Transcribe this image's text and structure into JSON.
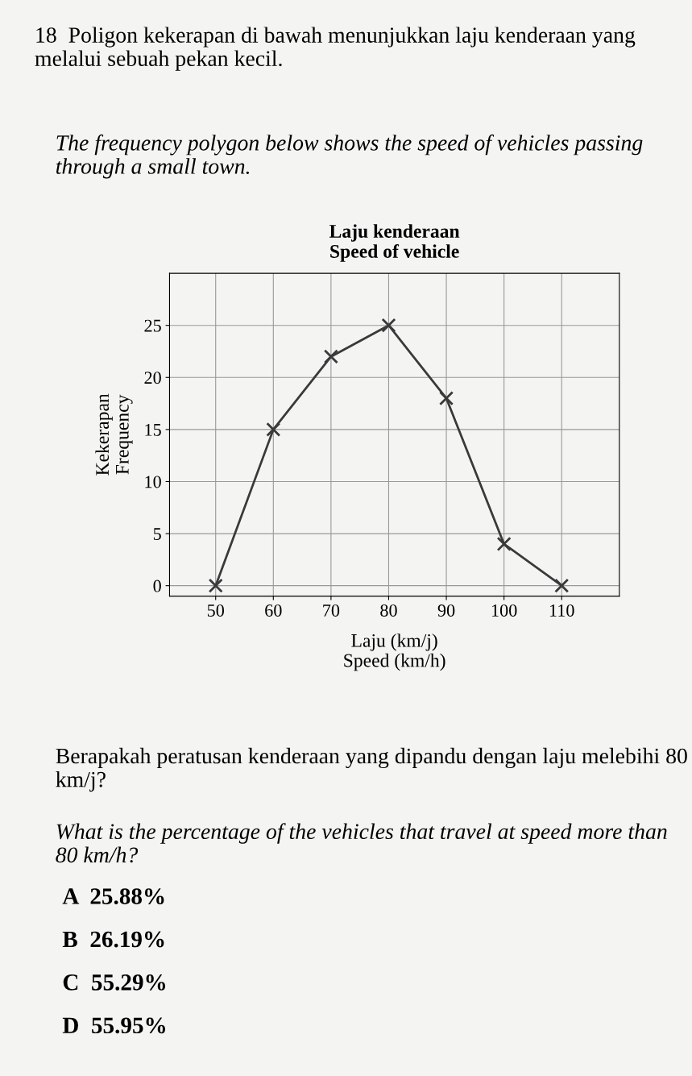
{
  "chart_data": {
    "type": "line",
    "title": "Laju kenderaan",
    "subtitle": "Speed of vehicle",
    "xlabel": "Laju (km/j)\nSpeed (km/h)",
    "ylabel": "Kekerapan\nFrequency",
    "x": [
      50,
      60,
      70,
      80,
      90,
      100,
      110
    ],
    "series": [
      {
        "color": "#3a3a3a",
        "values": [
          0,
          15,
          22,
          25,
          18,
          4,
          0
        ]
      }
    ],
    "xlim": [
      42,
      120
    ],
    "ylim": [
      -1,
      30
    ],
    "xticks": [
      50,
      60,
      70,
      80,
      90,
      100,
      110
    ],
    "yticks": [
      0,
      5,
      10,
      15,
      20,
      25
    ],
    "grid": true,
    "marker": "cross",
    "line_style": "solid",
    "annotations": [
      "18  Poligon kekerapan di bawah menunjukkan laju kenderaan yang melalui sebuah pekan kecil.",
      "The frequency polygon below shows the speed of vehicles passing through a small town.",
      "Berapakah peratusan kenderaan yang dipandu dengan laju melebihi 80 km/j?",
      "What is the percentage of the vehicles that travel at speed more than 80 km/h?",
      "A  25.88%",
      "B  26.19%",
      "C  55.29%",
      "D  55.95%"
    ]
  }
}
